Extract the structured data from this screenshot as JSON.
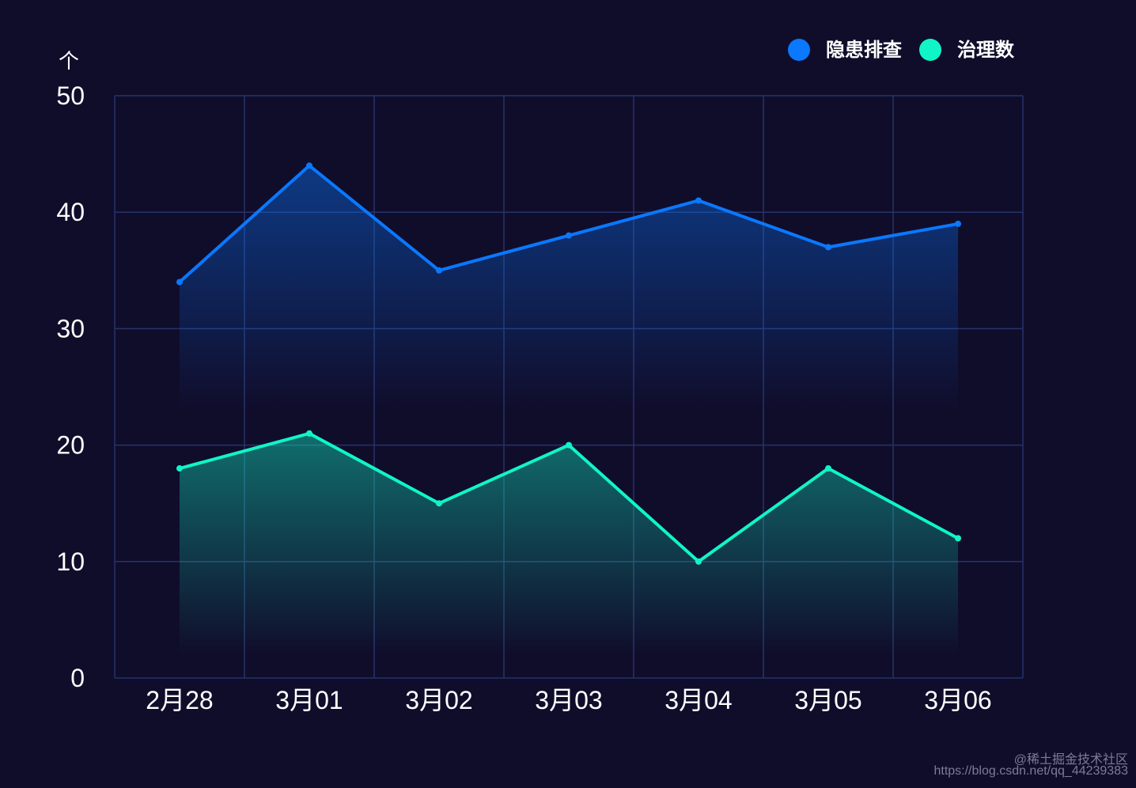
{
  "chart_data": {
    "type": "area",
    "categories": [
      "2月28",
      "3月01",
      "3月02",
      "3月03",
      "3月04",
      "3月05",
      "3月06"
    ],
    "series": [
      {
        "name": "隐患排查",
        "values": [
          34,
          44,
          35,
          38,
          41,
          37,
          39
        ],
        "color": "#0a78ff"
      },
      {
        "name": "治理数",
        "values": [
          18,
          21,
          15,
          20,
          10,
          18,
          12
        ],
        "color": "#10f5c8"
      }
    ],
    "title": "",
    "xlabel": "",
    "ylabel": "个",
    "ylim": [
      0,
      50
    ],
    "yticks": [
      "0",
      "10",
      "20",
      "30",
      "40",
      "50"
    ],
    "grid": true,
    "legend_position": "top-right"
  },
  "colors": {
    "background": "#100d2b",
    "grid": "#26336b",
    "text": "#ffffff"
  },
  "watermark": {
    "line1": "@稀土掘金技术社区",
    "line2": "https://blog.csdn.net/qq_44239383"
  }
}
